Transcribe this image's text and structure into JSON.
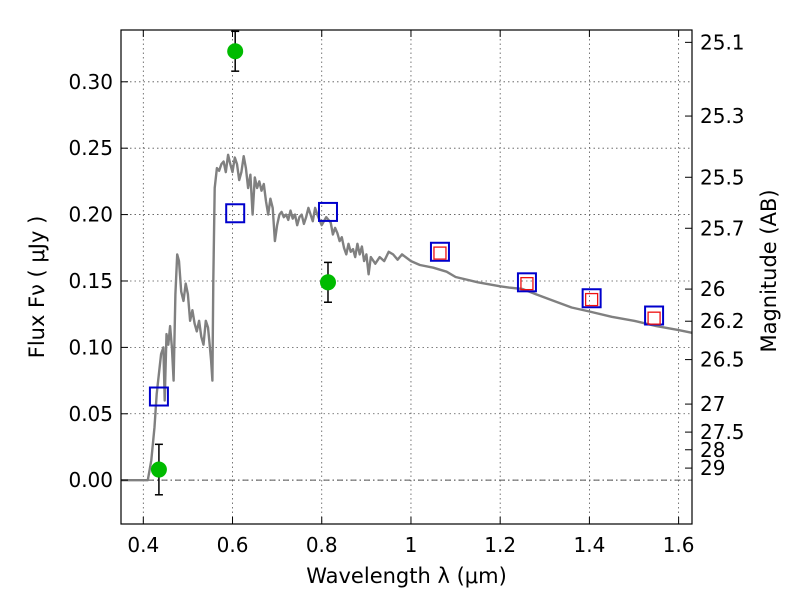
{
  "chart_data": {
    "type": "scatter",
    "xlabel": "Wavelength  λ (μm)",
    "ylabel": "Flux  Fν  ( μJy )",
    "y2label": "Magnitude (AB)",
    "xlim": [
      0.35,
      1.63
    ],
    "ylim": [
      -0.033,
      0.339
    ],
    "x_ticks": [
      0.4,
      0.6,
      0.8,
      1.0,
      1.2,
      1.4,
      1.6
    ],
    "x_tick_labels": [
      "0.4",
      "0.6",
      "0.8",
      "1",
      "1.2",
      "1.4",
      "1.6"
    ],
    "y_ticks": [
      0.0,
      0.05,
      0.1,
      0.15,
      0.2,
      0.25,
      0.3
    ],
    "y_tick_labels": [
      "0.00",
      "0.05",
      "0.10",
      "0.15",
      "0.20",
      "0.25",
      "0.30"
    ],
    "y2_ticks": [
      {
        "label": "25.1",
        "flux": 0.3297
      },
      {
        "label": "25.3",
        "flux": 0.2742
      },
      {
        "label": "25.5",
        "flux": 0.2281
      },
      {
        "label": "25.7",
        "flux": 0.1897
      },
      {
        "label": "26",
        "flux": 0.1439
      },
      {
        "label": "26.2",
        "flux": 0.1197
      },
      {
        "label": "26.5",
        "flux": 0.0908
      },
      {
        "label": "27",
        "flux": 0.0573
      },
      {
        "label": "27.5",
        "flux": 0.0362
      },
      {
        "label": "28",
        "flux": 0.0229
      },
      {
        "label": "29",
        "flux": 0.0091
      }
    ],
    "grid": true,
    "legend": "none",
    "colors": {
      "model": "#808080",
      "observed": "#00bb00",
      "model_box": "#0000cc",
      "model_box_inner": "#ee1111",
      "zero_line": "#555555"
    },
    "series": [
      {
        "type": "line",
        "points": [
          [
            0.35,
            0.0
          ],
          [
            0.41,
            0.0
          ],
          [
            0.418,
            0.015
          ],
          [
            0.425,
            0.04
          ],
          [
            0.43,
            0.065
          ],
          [
            0.435,
            0.08
          ],
          [
            0.44,
            0.095
          ],
          [
            0.445,
            0.1
          ],
          [
            0.448,
            0.06
          ],
          [
            0.452,
            0.11
          ],
          [
            0.456,
            0.102
          ],
          [
            0.46,
            0.116
          ],
          [
            0.464,
            0.1
          ],
          [
            0.468,
            0.075
          ],
          [
            0.472,
            0.14
          ],
          [
            0.476,
            0.17
          ],
          [
            0.48,
            0.165
          ],
          [
            0.485,
            0.142
          ],
          [
            0.49,
            0.135
          ],
          [
            0.495,
            0.148
          ],
          [
            0.5,
            0.14
          ],
          [
            0.505,
            0.12
          ],
          [
            0.51,
            0.128
          ],
          [
            0.515,
            0.118
          ],
          [
            0.52,
            0.112
          ],
          [
            0.525,
            0.12
          ],
          [
            0.53,
            0.108
          ],
          [
            0.535,
            0.102
          ],
          [
            0.54,
            0.12
          ],
          [
            0.545,
            0.115
          ],
          [
            0.548,
            0.105
          ],
          [
            0.552,
            0.09
          ],
          [
            0.555,
            0.075
          ],
          [
            0.557,
            0.15
          ],
          [
            0.56,
            0.22
          ],
          [
            0.565,
            0.235
          ],
          [
            0.57,
            0.233
          ],
          [
            0.575,
            0.238
          ],
          [
            0.58,
            0.24
          ],
          [
            0.585,
            0.232
          ],
          [
            0.59,
            0.245
          ],
          [
            0.595,
            0.238
          ],
          [
            0.6,
            0.232
          ],
          [
            0.605,
            0.243
          ],
          [
            0.61,
            0.238
          ],
          [
            0.615,
            0.226
          ],
          [
            0.62,
            0.232
          ],
          [
            0.625,
            0.244
          ],
          [
            0.63,
            0.235
          ],
          [
            0.635,
            0.22
          ],
          [
            0.64,
            0.23
          ],
          [
            0.645,
            0.2
          ],
          [
            0.65,
            0.228
          ],
          [
            0.655,
            0.22
          ],
          [
            0.66,
            0.225
          ],
          [
            0.665,
            0.218
          ],
          [
            0.67,
            0.223
          ],
          [
            0.675,
            0.21
          ],
          [
            0.68,
            0.2
          ],
          [
            0.685,
            0.212
          ],
          [
            0.69,
            0.205
          ],
          [
            0.695,
            0.18
          ],
          [
            0.7,
            0.192
          ],
          [
            0.705,
            0.2
          ],
          [
            0.71,
            0.202
          ],
          [
            0.715,
            0.198
          ],
          [
            0.72,
            0.2
          ],
          [
            0.725,
            0.196
          ],
          [
            0.73,
            0.203
          ],
          [
            0.735,
            0.197
          ],
          [
            0.74,
            0.2
          ],
          [
            0.745,
            0.192
          ],
          [
            0.75,
            0.198
          ],
          [
            0.755,
            0.2
          ],
          [
            0.76,
            0.193
          ],
          [
            0.765,
            0.198
          ],
          [
            0.77,
            0.205
          ],
          [
            0.775,
            0.2
          ],
          [
            0.78,
            0.195
          ],
          [
            0.785,
            0.205
          ],
          [
            0.79,
            0.2
          ],
          [
            0.795,
            0.196
          ],
          [
            0.8,
            0.192
          ],
          [
            0.81,
            0.198
          ],
          [
            0.82,
            0.194
          ],
          [
            0.825,
            0.185
          ],
          [
            0.83,
            0.19
          ],
          [
            0.835,
            0.186
          ],
          [
            0.84,
            0.18
          ],
          [
            0.845,
            0.183
          ],
          [
            0.85,
            0.175
          ],
          [
            0.855,
            0.17
          ],
          [
            0.86,
            0.178
          ],
          [
            0.865,
            0.172
          ],
          [
            0.87,
            0.174
          ],
          [
            0.875,
            0.168
          ],
          [
            0.88,
            0.178
          ],
          [
            0.885,
            0.17
          ],
          [
            0.89,
            0.176
          ],
          [
            0.895,
            0.165
          ],
          [
            0.9,
            0.17
          ],
          [
            0.905,
            0.155
          ],
          [
            0.91,
            0.168
          ],
          [
            0.92,
            0.163
          ],
          [
            0.93,
            0.168
          ],
          [
            0.94,
            0.165
          ],
          [
            0.95,
            0.172
          ],
          [
            0.96,
            0.17
          ],
          [
            0.97,
            0.166
          ],
          [
            0.98,
            0.17
          ],
          [
            1.0,
            0.165
          ],
          [
            1.02,
            0.162
          ],
          [
            1.05,
            0.16
          ],
          [
            1.08,
            0.157
          ],
          [
            1.1,
            0.153
          ],
          [
            1.15,
            0.149
          ],
          [
            1.2,
            0.146
          ],
          [
            1.22,
            0.145
          ],
          [
            1.25,
            0.144
          ],
          [
            1.28,
            0.14
          ],
          [
            1.32,
            0.135
          ],
          [
            1.36,
            0.13
          ],
          [
            1.4,
            0.127
          ],
          [
            1.45,
            0.123
          ],
          [
            1.5,
            0.12
          ],
          [
            1.55,
            0.116
          ],
          [
            1.6,
            0.113
          ],
          [
            1.63,
            0.111
          ]
        ]
      },
      {
        "type": "errorbar",
        "points": [
          {
            "x": 0.435,
            "y": 0.008,
            "err": 0.019
          },
          {
            "x": 0.606,
            "y": 0.323,
            "err": 0.015
          },
          {
            "x": 0.814,
            "y": 0.149,
            "err": 0.015
          }
        ]
      },
      {
        "type": "scatter",
        "marker": "square",
        "points": [
          {
            "x": 0.435,
            "y": 0.063
          },
          {
            "x": 0.606,
            "y": 0.201
          },
          {
            "x": 0.814,
            "y": 0.202
          },
          {
            "x": 1.065,
            "y": 0.172
          },
          {
            "x": 1.26,
            "y": 0.149
          },
          {
            "x": 1.405,
            "y": 0.137
          },
          {
            "x": 1.545,
            "y": 0.124
          }
        ]
      },
      {
        "type": "scatter",
        "marker": "small-square",
        "points": [
          {
            "x": 1.065,
            "y": 0.171
          },
          {
            "x": 1.26,
            "y": 0.148
          },
          {
            "x": 1.405,
            "y": 0.136
          },
          {
            "x": 1.545,
            "y": 0.122
          }
        ]
      }
    ]
  }
}
